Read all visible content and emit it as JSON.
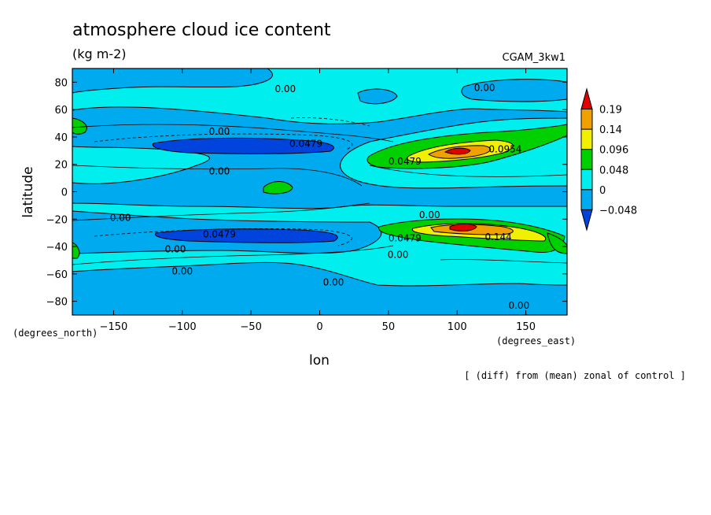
{
  "header": {
    "title": "atmosphere cloud ice content",
    "units": "(kg m-2)",
    "model": "CGAM_3kw1",
    "footer": "[ (diff) from (mean) zonal of control ]"
  },
  "chart_data": {
    "type": "heatmap",
    "xlabel": "lon",
    "ylabel": "latitude",
    "x_units": "(degrees_east)",
    "y_units": "(degrees_north)",
    "xlim": [
      -180,
      180
    ],
    "ylim": [
      -90,
      90
    ],
    "xticks": [
      -150,
      -100,
      -50,
      0,
      50,
      100,
      150
    ],
    "yticks": [
      -80,
      -60,
      -40,
      -20,
      0,
      20,
      40,
      60,
      80
    ],
    "colorbar": {
      "labels": [
        "0.19",
        "0.14",
        "0.096",
        "0.048",
        "0",
        "-0.048"
      ],
      "colors": [
        "#e00000",
        "#f0a000",
        "#f0f000",
        "#00d000",
        "#00eeee",
        "#00aaee",
        "#0044dd"
      ]
    },
    "contour_labels": [
      {
        "text": "0.00",
        "lon": -25,
        "lat": 75
      },
      {
        "text": "0.00",
        "lon": 120,
        "lat": 76
      },
      {
        "text": "0.00",
        "lon": -73,
        "lat": 44
      },
      {
        "text": "0.0479",
        "lon": -10,
        "lat": 35
      },
      {
        "text": "0.0954",
        "lon": 135,
        "lat": 31
      },
      {
        "text": "0.0479",
        "lon": 62,
        "lat": 22
      },
      {
        "text": "0.00",
        "lon": -73,
        "lat": 15
      },
      {
        "text": "0.00",
        "lon": -145,
        "lat": -19
      },
      {
        "text": "0.0479",
        "lon": -73,
        "lat": -31
      },
      {
        "text": "0.00",
        "lon": -105,
        "lat": -42
      },
      {
        "text": "0.00",
        "lon": 80,
        "lat": -17
      },
      {
        "text": "0.0479",
        "lon": 62,
        "lat": -34
      },
      {
        "text": "0.144",
        "lon": 130,
        "lat": -33
      },
      {
        "text": "0.00",
        "lon": 57,
        "lat": -46
      },
      {
        "text": "0.00",
        "lon": -100,
        "lat": -58
      },
      {
        "text": "0.00",
        "lon": 10,
        "lat": -66
      },
      {
        "text": "0.00",
        "lon": 145,
        "lat": -83
      }
    ]
  }
}
